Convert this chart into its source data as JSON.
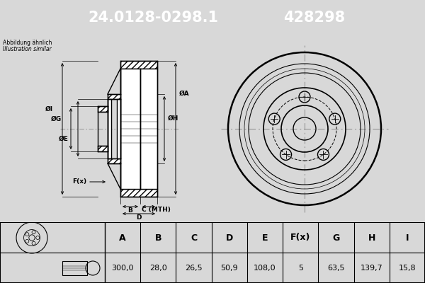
{
  "title_part": "24.0128-0298.1",
  "title_num": "428298",
  "subtitle1": "Abbildung ähnlich",
  "subtitle2": "Illustration similar",
  "header_bg": "#1a5fa8",
  "header_text": "#ffffff",
  "bg_color": "#d8d8d8",
  "draw_bg": "#f0f0f0",
  "table_bg": "#ffffff",
  "table_headers": [
    "A",
    "B",
    "C",
    "D",
    "E",
    "F(x)",
    "G",
    "H",
    "I"
  ],
  "table_values": [
    "300,0",
    "28,0",
    "26,5",
    "50,9",
    "108,0",
    "5",
    "63,5",
    "139,7",
    "15,8"
  ]
}
